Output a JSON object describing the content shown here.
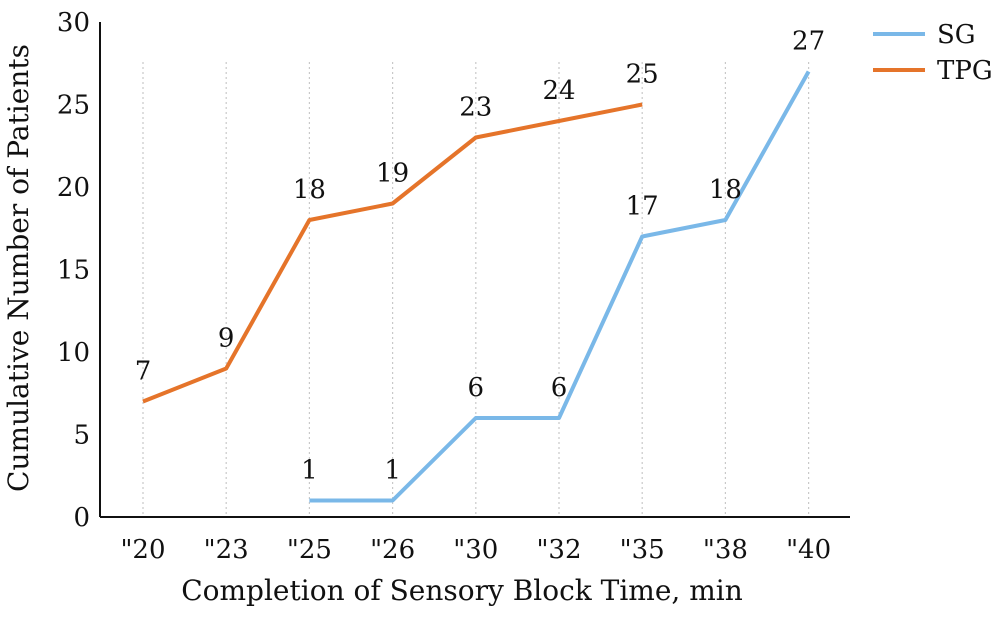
{
  "chart_data": {
    "type": "line",
    "xlabel": "Completion of Sensory Block Time, min",
    "ylabel": "Cumulative Number of Patients",
    "categories": [
      "\"20",
      "\"23",
      "\"25",
      "\"26",
      "\"30",
      "\"32",
      "\"35",
      "\"38",
      "\"40"
    ],
    "ylim": [
      0,
      30
    ],
    "yticks": [
      0,
      5,
      10,
      15,
      20,
      25,
      30
    ],
    "grid": "vertical dotted lines at each category",
    "legend": "top-right",
    "series": [
      {
        "name": "SG",
        "color": "#7ab8e8",
        "values": [
          null,
          null,
          1,
          1,
          6,
          6,
          17,
          18,
          27
        ]
      },
      {
        "name": "TPG",
        "color": "#e5742a",
        "values": [
          7,
          9,
          18,
          19,
          23,
          24,
          25,
          null,
          null
        ]
      }
    ]
  }
}
